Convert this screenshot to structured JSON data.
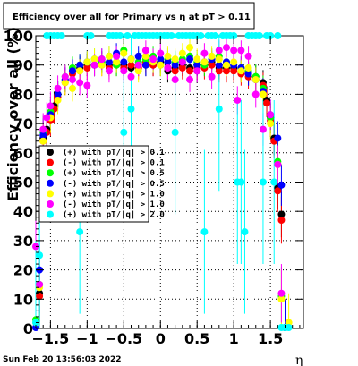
{
  "chart_data": {
    "type": "scatter",
    "title": "Efficiency over all for Primary vs   η at pT > 0.11",
    "xlabel": "η",
    "ylabel": "Efficiency over all (%)",
    "xlim": [
      -1.7,
      1.95
    ],
    "ylim": [
      0,
      100
    ],
    "xticks": [
      -1.5,
      -1,
      -0.5,
      0,
      0.5,
      1,
      1.5
    ],
    "xtick_labels": [
      "−1.5",
      "−1",
      "−0.5",
      "0",
      "0.5",
      "1",
      "1.5"
    ],
    "yticks": [
      0,
      10,
      20,
      30,
      40,
      50,
      60,
      70,
      80,
      90,
      100
    ],
    "ytick_labels": [
      "0",
      "10",
      "20",
      "30",
      "40",
      "50",
      "60",
      "70",
      "80",
      "90",
      "100"
    ],
    "grid": true,
    "legend_position": "middle-left",
    "series": [
      {
        "name": "(+) with pT/|q| > 0.1",
        "color": "#000000",
        "x": [
          -1.65,
          -1.6,
          -1.55,
          -1.5,
          -1.45,
          -1.4,
          -1.3,
          -1.2,
          -1.1,
          -1.0,
          -0.9,
          -0.8,
          -0.7,
          -0.6,
          -0.5,
          -0.4,
          -0.3,
          -0.2,
          -0.1,
          0.0,
          0.1,
          0.2,
          0.3,
          0.4,
          0.5,
          0.6,
          0.7,
          0.8,
          0.9,
          1.0,
          1.1,
          1.2,
          1.3,
          1.4,
          1.45,
          1.5,
          1.55,
          1.6,
          1.65
        ],
        "y": [
          12,
          65,
          68,
          72,
          76,
          80,
          85,
          88,
          89,
          90,
          90,
          91,
          90,
          91,
          90,
          89,
          90,
          90,
          90,
          91,
          88,
          89,
          90,
          89,
          88,
          90,
          91,
          89,
          89,
          89,
          88,
          87,
          86,
          84,
          78,
          72,
          65,
          48,
          39
        ]
      },
      {
        "name": "(-) with pT/|q| > 0.1",
        "color": "#ff0000",
        "x": [
          -1.65,
          -1.6,
          -1.55,
          -1.5,
          -1.45,
          -1.4,
          -1.3,
          -1.2,
          -1.1,
          -1.0,
          -0.9,
          -0.8,
          -0.7,
          -0.6,
          -0.5,
          -0.4,
          -0.3,
          -0.2,
          -0.1,
          0.0,
          0.1,
          0.2,
          0.3,
          0.4,
          0.5,
          0.6,
          0.7,
          0.8,
          0.9,
          1.0,
          1.1,
          1.2,
          1.3,
          1.4,
          1.45,
          1.5,
          1.55,
          1.6,
          1.65
        ],
        "y": [
          11,
          64,
          67,
          71,
          75,
          79,
          84,
          87,
          88,
          89,
          90,
          90,
          89,
          90,
          89,
          90,
          89,
          91,
          90,
          90,
          89,
          88,
          89,
          88,
          89,
          89,
          90,
          88,
          88,
          88,
          87,
          86,
          85,
          83,
          77,
          71,
          64,
          47,
          37
        ]
      },
      {
        "name": "(+) with pT/|q| > 0.5",
        "color": "#00ff00",
        "x": [
          -1.7,
          -1.65,
          -1.6,
          -1.5,
          -1.4,
          -1.3,
          -1.2,
          -1.1,
          -1.0,
          -0.9,
          -0.8,
          -0.7,
          -0.6,
          -0.5,
          -0.4,
          -0.3,
          -0.2,
          -0.1,
          0.0,
          0.1,
          0.2,
          0.3,
          0.4,
          0.5,
          0.6,
          0.7,
          0.8,
          0.9,
          1.0,
          1.1,
          1.2,
          1.3,
          1.4,
          1.5,
          1.6,
          1.65,
          1.7
        ],
        "y": [
          3,
          15,
          67,
          74,
          80,
          86,
          89,
          90,
          91,
          92,
          91,
          93,
          90,
          95,
          92,
          91,
          92,
          93,
          90,
          92,
          91,
          92,
          93,
          91,
          90,
          92,
          93,
          91,
          90,
          89,
          88,
          86,
          82,
          72,
          57,
          11,
          0
        ]
      },
      {
        "name": "(-) with pT/|q| > 0.5",
        "color": "#0000ff",
        "x": [
          -1.7,
          -1.65,
          -1.6,
          -1.5,
          -1.4,
          -1.3,
          -1.2,
          -1.1,
          -1.0,
          -0.9,
          -0.8,
          -0.7,
          -0.6,
          -0.5,
          -0.4,
          -0.3,
          -0.2,
          -0.1,
          0.0,
          0.1,
          0.2,
          0.3,
          0.4,
          0.5,
          0.6,
          0.7,
          0.8,
          0.9,
          1.0,
          1.1,
          1.2,
          1.3,
          1.4,
          1.5,
          1.6,
          1.65,
          1.7
        ],
        "y": [
          0,
          20,
          66,
          73,
          80,
          85,
          88,
          90,
          91,
          90,
          92,
          91,
          94,
          91,
          92,
          93,
          90,
          91,
          92,
          91,
          90,
          91,
          92,
          90,
          91,
          92,
          90,
          91,
          90,
          89,
          87,
          85,
          81,
          73,
          65,
          49,
          0
        ]
      },
      {
        "name": "(+) with pT/|q| > 1.0",
        "color": "#ffff00",
        "x": [
          -1.7,
          -1.65,
          -1.6,
          -1.5,
          -1.4,
          -1.3,
          -1.2,
          -1.1,
          -1.0,
          -0.9,
          -0.8,
          -0.7,
          -0.6,
          -0.5,
          -0.4,
          -0.3,
          -0.2,
          -0.1,
          0.0,
          0.1,
          0.2,
          0.3,
          0.4,
          0.5,
          0.6,
          0.7,
          0.8,
          0.9,
          1.0,
          1.1,
          1.2,
          1.3,
          1.4,
          1.5,
          1.6,
          1.65,
          1.75
        ],
        "y": [
          2,
          14,
          64,
          72,
          78,
          84,
          82,
          88,
          91,
          92,
          90,
          93,
          91,
          94,
          92,
          88,
          93,
          91,
          90,
          93,
          92,
          94,
          96,
          92,
          91,
          93,
          92,
          90,
          91,
          88,
          89,
          85,
          80,
          70,
          56,
          10,
          2
        ]
      },
      {
        "name": "(-) with pT/|q| > 1.0",
        "color": "#ff00ff",
        "x": [
          -1.7,
          -1.65,
          -1.6,
          -1.55,
          -1.5,
          -1.4,
          -1.3,
          -1.2,
          -1.1,
          -1.0,
          -0.9,
          -0.8,
          -0.7,
          -0.6,
          -0.5,
          -0.4,
          -0.3,
          -0.2,
          -0.1,
          0.0,
          0.1,
          0.2,
          0.3,
          0.4,
          0.5,
          0.6,
          0.7,
          0.8,
          0.9,
          1.0,
          1.05,
          1.1,
          1.2,
          1.3,
          1.4,
          1.5,
          1.6,
          1.65
        ],
        "y": [
          28,
          15,
          68,
          72,
          76,
          82,
          86,
          85,
          84,
          83,
          90,
          92,
          88,
          93,
          88,
          86,
          90,
          95,
          92,
          94,
          89,
          85,
          91,
          85,
          88,
          94,
          86,
          95,
          96,
          95,
          78,
          95,
          93,
          80,
          68,
          73,
          56,
          12
        ]
      },
      {
        "name": "(+) with pT/|q| > 2.0",
        "color": "#00ffff",
        "x": [
          -1.7,
          -1.65,
          -1.55,
          -1.5,
          -1.45,
          -1.4,
          -1.35,
          -1.1,
          -1.0,
          -0.95,
          -0.7,
          -0.65,
          -0.6,
          -0.55,
          -0.5,
          -0.45,
          -0.4,
          -0.35,
          -0.3,
          -0.25,
          -0.2,
          -0.15,
          -0.1,
          -0.05,
          0.0,
          0.05,
          0.1,
          0.15,
          0.2,
          0.25,
          0.3,
          0.35,
          0.4,
          0.45,
          0.5,
          0.55,
          0.6,
          0.65,
          0.7,
          0.75,
          0.8,
          0.85,
          0.9,
          0.95,
          1.0,
          1.05,
          1.1,
          1.15,
          1.2,
          1.25,
          1.3,
          1.35,
          1.4,
          1.45,
          1.5,
          1.55,
          1.6,
          1.65,
          1.7,
          1.75
        ],
        "y": [
          2,
          25,
          100,
          100,
          100,
          100,
          100,
          33,
          100,
          100,
          100,
          100,
          100,
          100,
          67,
          100,
          75,
          100,
          100,
          100,
          100,
          100,
          100,
          100,
          100,
          100,
          100,
          100,
          67,
          100,
          100,
          100,
          100,
          100,
          100,
          100,
          33,
          100,
          100,
          100,
          75,
          100,
          100,
          100,
          100,
          50,
          50,
          33,
          100,
          100,
          100,
          100,
          50,
          100,
          100,
          50,
          100,
          0,
          0,
          0
        ]
      }
    ],
    "legend": [
      "(+) with pT/|q| > 0.1",
      "(-) with pT/|q| > 0.1",
      "(+) with pT/|q| > 0.5",
      "(-) with pT/|q| > 0.5",
      "(+) with pT/|q| > 1.0",
      "(-) with pT/|q| > 1.0",
      "(+) with pT/|q| > 2.0"
    ]
  },
  "footer": {
    "date": "Sun Feb 20 13:56:03 2022"
  }
}
